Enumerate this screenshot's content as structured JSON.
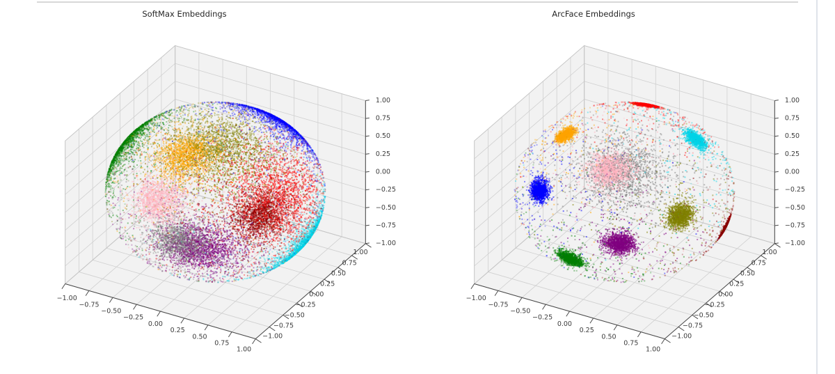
{
  "page": {
    "background": "#ffffff",
    "top_divider_color": "#d8d8d8",
    "side_divider_color": "#dfe3ea"
  },
  "chart_data": [
    {
      "type": "scatter",
      "subtype": "scatter3d-unit-sphere",
      "title": "SoftMax Embeddings",
      "xlim": [
        -1,
        1
      ],
      "ylim": [
        -1,
        1
      ],
      "zlim": [
        -1,
        1
      ],
      "grid": true,
      "legend": false,
      "view": {
        "elev": 30,
        "azim": -60
      },
      "tick_values": [
        -1,
        -0.75,
        -0.5,
        -0.25,
        0,
        0.25,
        0.5,
        0.75,
        1
      ],
      "tick_labels": [
        "−1.00",
        "−0.75",
        "−0.50",
        "−0.25",
        "0.00",
        "0.25",
        "0.50",
        "0.75",
        "1.00"
      ],
      "style": {
        "pane_color": "#f2f2f2",
        "grid_color": "#d0d0d0",
        "pane_edge_color": "#c6c6c6",
        "axis_color": "#4a4a4a",
        "tick_label_color": "#3c3c3c",
        "point_size": 2,
        "alpha_near": 0.5,
        "alpha_far": 0.15
      },
      "clusters": [
        {
          "color_name": "red",
          "color": "#ff0000",
          "center": [
            0.83,
            -0.3,
            0.46
          ],
          "sigma": 0.28,
          "n": 2200,
          "tail_frac": 0.2,
          "tail_sigma": 0.6
        },
        {
          "color_name": "blue",
          "color": "#0000ff",
          "center": [
            0.3,
            0.64,
            0.7
          ],
          "sigma": 0.22,
          "n": 2000,
          "tail_frac": 0.2,
          "tail_sigma": 0.6
        },
        {
          "color_name": "green",
          "color": "#008000",
          "center": [
            -0.86,
            -0.17,
            0.49
          ],
          "sigma": 0.22,
          "n": 2000,
          "tail_frac": 0.2,
          "tail_sigma": 0.6
        },
        {
          "color_name": "orange",
          "color": "#ffa500",
          "center": [
            -0.01,
            -0.51,
            0.86
          ],
          "sigma": 0.15,
          "n": 1800,
          "tail_frac": 0.2,
          "tail_sigma": 0.6
        },
        {
          "color_name": "olive",
          "color": "#808000",
          "center": [
            0.23,
            -0.3,
            0.93
          ],
          "sigma": 0.24,
          "n": 2000,
          "tail_frac": 0.2,
          "tail_sigma": 0.6
        },
        {
          "color_name": "purple",
          "color": "#800080",
          "center": [
            0.39,
            -0.92,
            -0.03
          ],
          "sigma": 0.18,
          "n": 1800,
          "tail_frac": 0.2,
          "tail_sigma": 0.6
        },
        {
          "color_name": "cyan",
          "color": "#00d4e8",
          "center": [
            0.85,
            0.16,
            -0.5
          ],
          "sigma": 0.22,
          "n": 2000,
          "tail_frac": 0.2,
          "tail_sigma": 0.6
        },
        {
          "color_name": "pink",
          "color": "#ffb3c0",
          "center": [
            -0.09,
            -0.89,
            0.44
          ],
          "sigma": 0.13,
          "n": 1600,
          "tail_frac": 0.2,
          "tail_sigma": 0.6
        },
        {
          "color_name": "gray",
          "color": "#808080",
          "center": [
            0.2,
            -0.98,
            0.03
          ],
          "sigma": 0.14,
          "n": 1600,
          "tail_frac": 0.2,
          "tail_sigma": 0.6
        },
        {
          "color_name": "darkred",
          "color": "#8b0000",
          "center": [
            0.78,
            -0.53,
            0.32
          ],
          "sigma": 0.14,
          "n": 1600,
          "tail_frac": 0.2,
          "tail_sigma": 0.6
        }
      ]
    },
    {
      "type": "scatter",
      "subtype": "scatter3d-unit-sphere",
      "title": "ArcFace Embeddings",
      "xlim": [
        -1,
        1
      ],
      "ylim": [
        -1,
        1
      ],
      "zlim": [
        -1,
        1
      ],
      "grid": true,
      "legend": false,
      "view": {
        "elev": 30,
        "azim": -60
      },
      "tick_values": [
        -1,
        -0.75,
        -0.5,
        -0.25,
        0,
        0.25,
        0.5,
        0.75,
        1
      ],
      "tick_labels": [
        "−1.00",
        "−0.75",
        "−0.50",
        "−0.25",
        "0.00",
        "0.25",
        "0.50",
        "0.75",
        "1.00"
      ],
      "style": {
        "pane_color": "#f2f2f2",
        "grid_color": "#d0d0d0",
        "pane_edge_color": "#c6c6c6",
        "axis_color": "#4a4a4a",
        "tick_label_color": "#3c3c3c",
        "point_size": 2,
        "alpha_near": 0.55,
        "alpha_far": 0.17
      },
      "clusters": [
        {
          "color_name": "red",
          "color": "#ff0000",
          "center": [
            -0.07,
            0.52,
            0.85
          ],
          "sigma": 0.05,
          "n": 1500,
          "tail_frac": 0.13,
          "tail_sigma": 0.55
        },
        {
          "color_name": "orange",
          "color": "#ffa500",
          "center": [
            -0.44,
            -0.31,
            0.84
          ],
          "sigma": 0.05,
          "n": 1400,
          "tail_frac": 0.13,
          "tail_sigma": 0.55
        },
        {
          "color_name": "cyan",
          "color": "#00d4e8",
          "center": [
            0.58,
            0.31,
            0.76
          ],
          "sigma": 0.06,
          "n": 1500,
          "tail_frac": 0.13,
          "tail_sigma": 0.55
        },
        {
          "color_name": "pink",
          "color": "#ffb3c0",
          "center": [
            0.2,
            -0.6,
            0.78
          ],
          "sigma": 0.1,
          "n": 1600,
          "tail_frac": 0.18,
          "tail_sigma": 0.5
        },
        {
          "color_name": "gray",
          "color": "#808080",
          "center": [
            0.3,
            -0.55,
            0.78
          ],
          "sigma": 0.2,
          "n": 1400,
          "tail_frac": 0.3,
          "tail_sigma": 0.45
        },
        {
          "color_name": "blue",
          "color": "#0000ff",
          "center": [
            -0.43,
            -0.81,
            0.4
          ],
          "sigma": 0.06,
          "n": 1500,
          "tail_frac": 0.13,
          "tail_sigma": 0.55
        },
        {
          "color_name": "olive",
          "color": "#808000",
          "center": [
            0.85,
            -0.45,
            0.29
          ],
          "sigma": 0.07,
          "n": 1500,
          "tail_frac": 0.13,
          "tail_sigma": 0.55
        },
        {
          "color_name": "darkred",
          "color": "#8b0000",
          "center": [
            0.9,
            0.29,
            -0.34
          ],
          "sigma": 0.055,
          "n": 1400,
          "tail_frac": 0.13,
          "tail_sigma": 0.55
        },
        {
          "color_name": "purple",
          "color": "#800080",
          "center": [
            0.46,
            -0.88,
            0.05
          ],
          "sigma": 0.07,
          "n": 1500,
          "tail_frac": 0.13,
          "tail_sigma": 0.55
        },
        {
          "color_name": "green",
          "color": "#008000",
          "center": [
            -0.02,
            -0.95,
            -0.31
          ],
          "sigma": 0.06,
          "n": 1500,
          "tail_frac": 0.13,
          "tail_sigma": 0.55
        }
      ]
    }
  ]
}
